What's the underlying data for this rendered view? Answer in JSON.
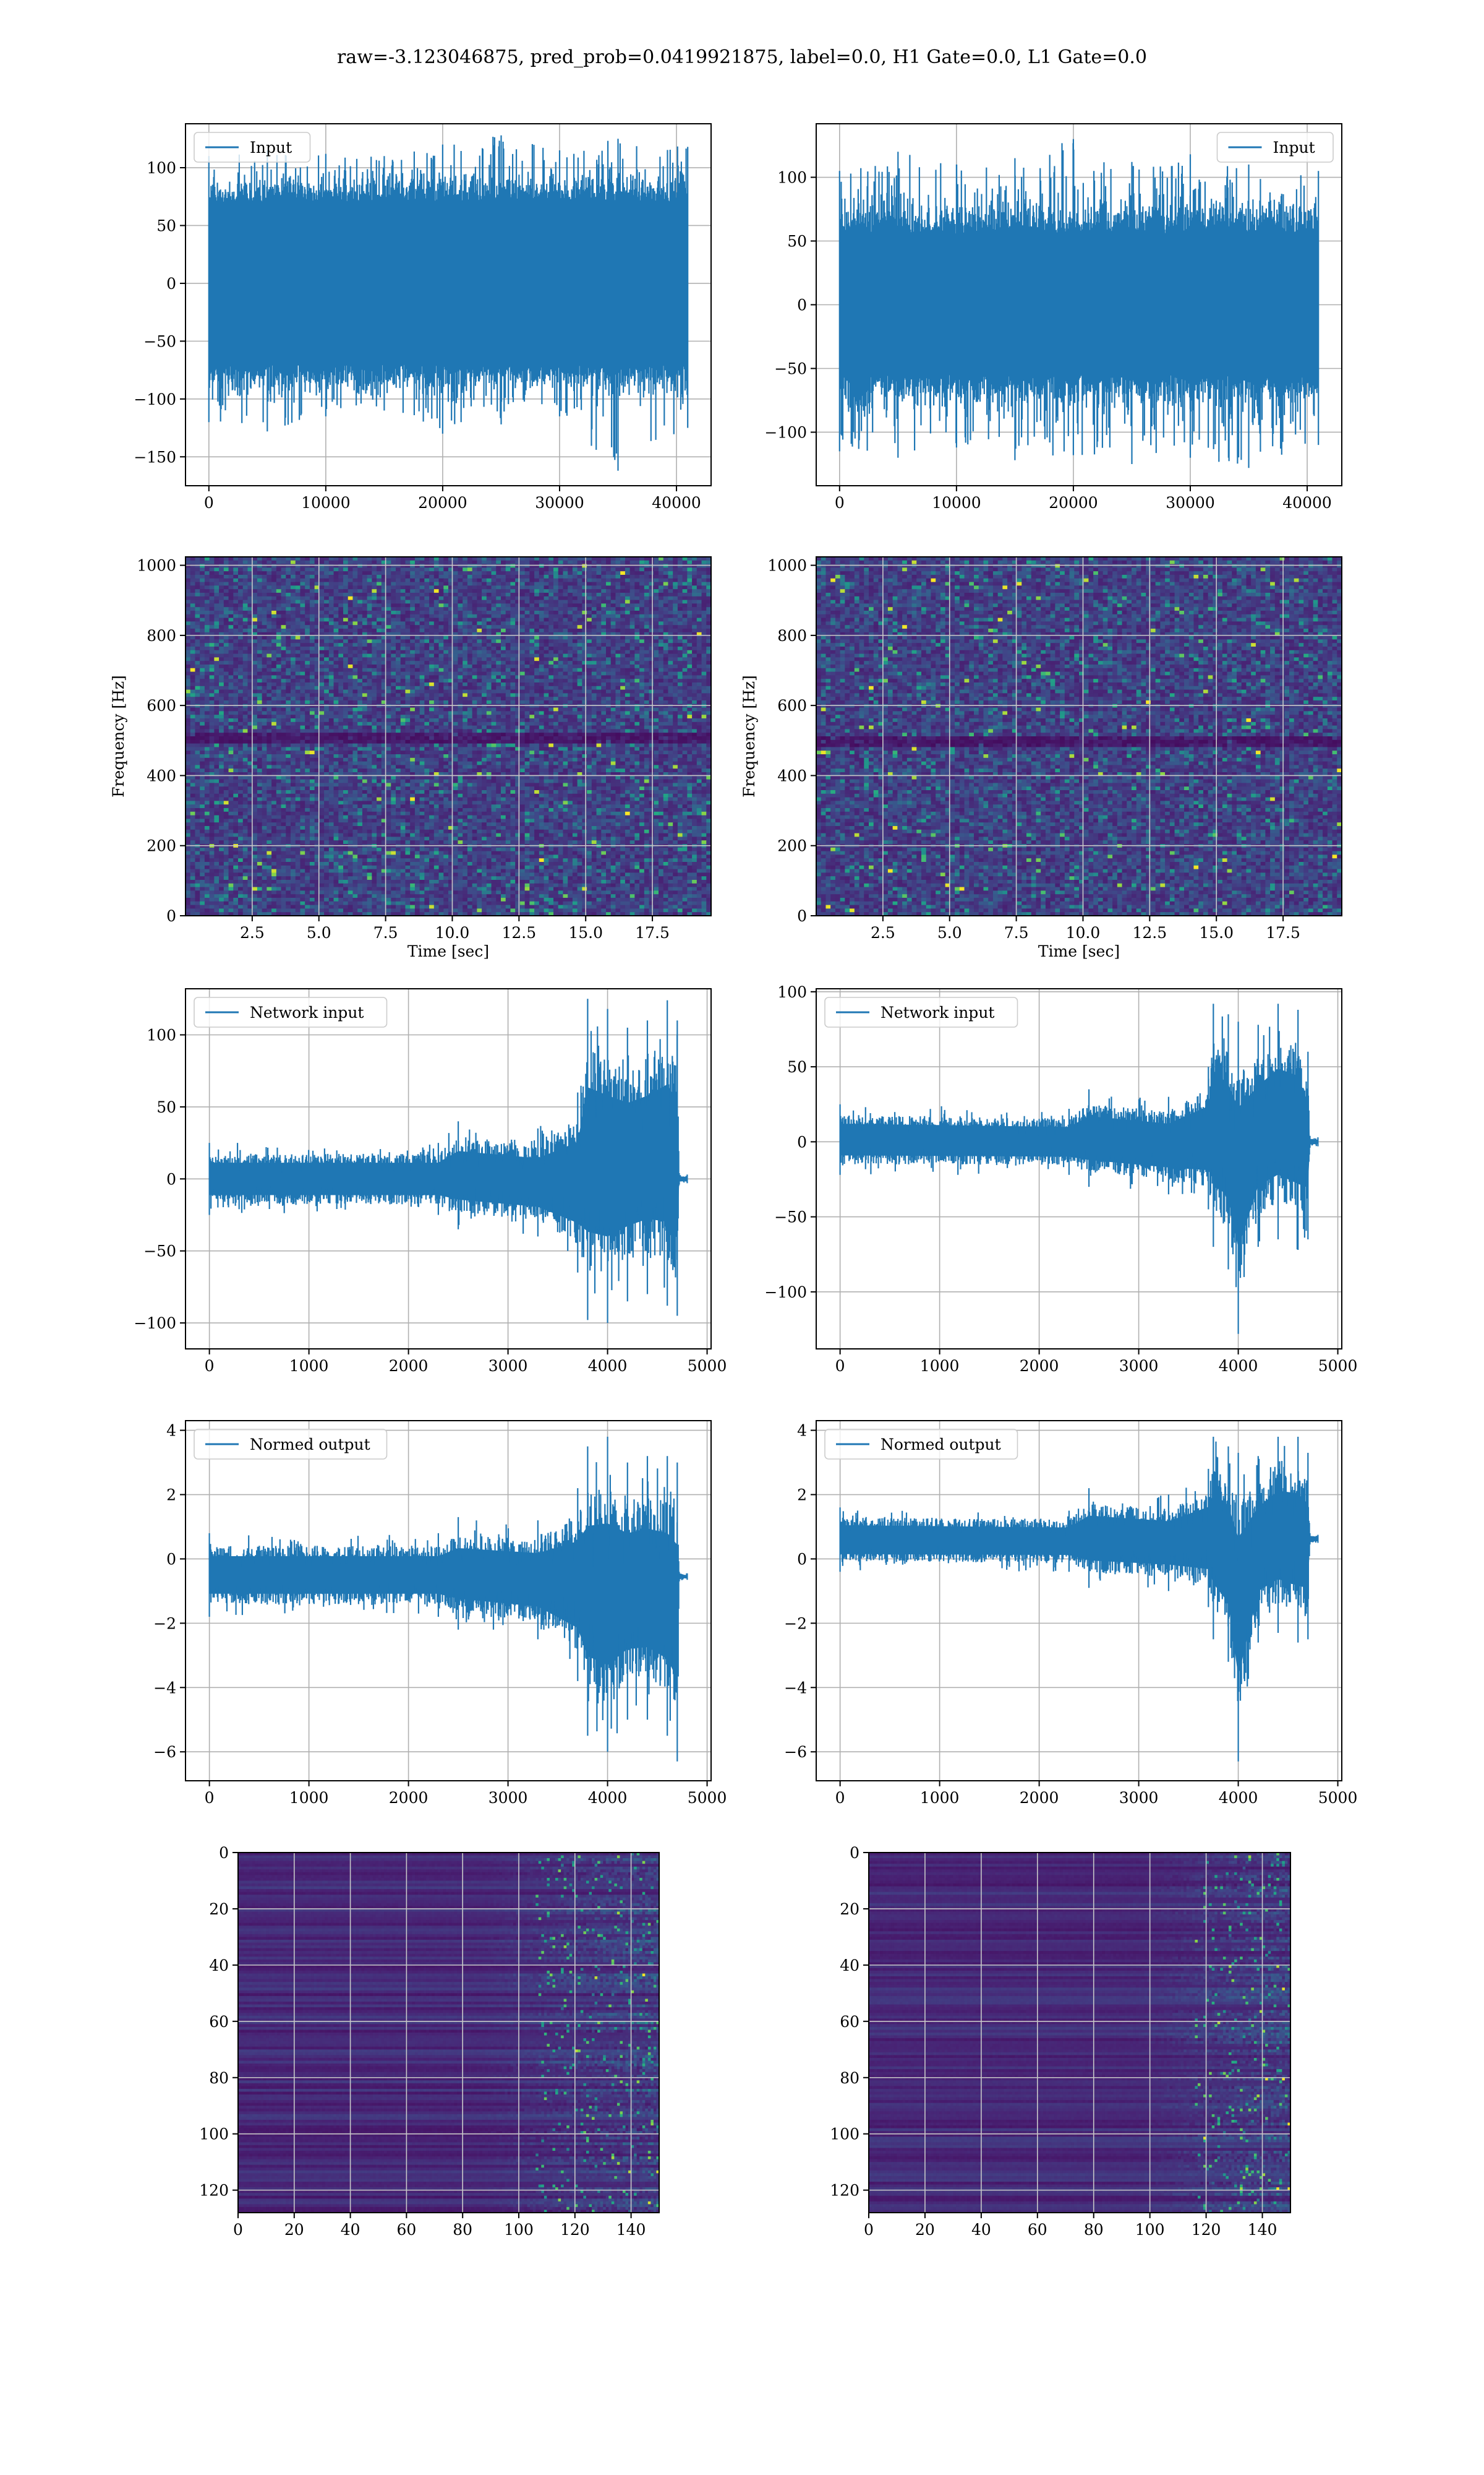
{
  "figure": {
    "title": "raw=-3.123046875, pred_prob=0.0419921875, label=0.0, H1 Gate=0.0, L1 Gate=0.0"
  },
  "colors": {
    "line": "#1f77b4",
    "grid": "#b0b0b0",
    "axes_edge": "#000000",
    "viridis_low": "#440154",
    "viridis_mid": "#21918c",
    "viridis_high": "#fde725"
  },
  "chart_data": [
    {
      "id": "input-h1",
      "type": "line",
      "legend": "Input",
      "legend_loc": "upper-left",
      "xlim": [
        -2000,
        42960
      ],
      "ylim": [
        -175,
        138
      ],
      "xticks": [
        0,
        10000,
        20000,
        30000,
        40000
      ],
      "yticks": [
        -150,
        -100,
        -50,
        0,
        50,
        100
      ],
      "grid": true,
      "series": [
        {
          "name": "Input",
          "x_range": [
            0,
            40960
          ],
          "points": 40960,
          "envelope_points_x": [
            0,
            5000,
            10000,
            15000,
            20000,
            25000,
            30000,
            35000,
            40960
          ],
          "core_band": [
            -70,
            70
          ],
          "peaks_max": [
            110,
            115,
            112,
            110,
            120,
            128,
            115,
            125,
            118
          ],
          "peaks_min": [
            -120,
            -128,
            -115,
            -110,
            -130,
            -122,
            -115,
            -162,
            -125
          ]
        }
      ]
    },
    {
      "id": "input-l1",
      "type": "line",
      "legend": "Input",
      "legend_loc": "upper-right",
      "xlim": [
        -2000,
        42960
      ],
      "ylim": [
        -142,
        142
      ],
      "xticks": [
        0,
        10000,
        20000,
        30000,
        40000
      ],
      "yticks": [
        -100,
        -50,
        0,
        50,
        100
      ],
      "grid": true,
      "series": [
        {
          "name": "Input",
          "x_range": [
            0,
            40960
          ],
          "points": 40960,
          "envelope_points_x": [
            0,
            5000,
            10000,
            15000,
            20000,
            25000,
            30000,
            35000,
            40960
          ],
          "core_band": [
            -55,
            55
          ],
          "peaks_max": [
            105,
            120,
            110,
            115,
            130,
            112,
            118,
            110,
            105
          ],
          "peaks_min": [
            -115,
            -120,
            -112,
            -122,
            -118,
            -125,
            -120,
            -128,
            -110
          ]
        }
      ]
    },
    {
      "id": "spectrogram-h1",
      "type": "heatmap",
      "xlabel": "Time [sec]",
      "ylabel": "Frequency [Hz]",
      "xlim": [
        0,
        19.7
      ],
      "ylim": [
        0,
        1024
      ],
      "xticks": [
        2.5,
        5.0,
        7.5,
        10.0,
        12.5,
        15.0,
        17.5
      ],
      "yticks": [
        0,
        200,
        400,
        600,
        800,
        1000
      ],
      "colormap": "viridis",
      "grid": true,
      "dark_band_hz": [
        500,
        510
      ]
    },
    {
      "id": "spectrogram-l1",
      "type": "heatmap",
      "xlabel": "Time [sec]",
      "ylabel": "Frequency [Hz]",
      "xlim": [
        0,
        19.7
      ],
      "ylim": [
        0,
        1024
      ],
      "xticks": [
        2.5,
        5.0,
        7.5,
        10.0,
        12.5,
        15.0,
        17.5
      ],
      "yticks": [
        0,
        200,
        400,
        600,
        800,
        1000
      ],
      "colormap": "viridis",
      "grid": true,
      "dark_band_hz": [
        495,
        505
      ]
    },
    {
      "id": "network-input-h1",
      "type": "line",
      "legend": "Network input",
      "legend_loc": "upper-left",
      "xlim": [
        -240,
        5040
      ],
      "ylim": [
        -118,
        132
      ],
      "xticks": [
        0,
        1000,
        2000,
        3000,
        4000,
        5000
      ],
      "yticks": [
        -100,
        -50,
        0,
        50,
        100
      ],
      "grid": true,
      "series": [
        {
          "name": "Network input",
          "x_range": [
            0,
            4800
          ],
          "envelope_points_x": [
            0,
            2300,
            2500,
            3300,
            3700,
            3800,
            4000,
            4200,
            4400,
            4600,
            4700,
            4720,
            4800
          ],
          "envelope_max": [
            25,
            25,
            40,
            35,
            60,
            125,
            118,
            105,
            110,
            124,
            110,
            4,
            3
          ],
          "envelope_min": [
            -25,
            -25,
            -35,
            -40,
            -65,
            -98,
            -100,
            -85,
            -80,
            -88,
            -95,
            -4,
            -3
          ]
        }
      ]
    },
    {
      "id": "network-input-l1",
      "type": "line",
      "legend": "Network input",
      "legend_loc": "upper-left",
      "xlim": [
        -240,
        5040
      ],
      "ylim": [
        -138,
        102
      ],
      "xticks": [
        0,
        1000,
        2000,
        3000,
        4000,
        5000
      ],
      "yticks": [
        -100,
        -50,
        0,
        50,
        100
      ],
      "grid": true,
      "series": [
        {
          "name": "Network input",
          "x_range": [
            0,
            4800
          ],
          "envelope_points_x": [
            0,
            2300,
            2500,
            3300,
            3700,
            3750,
            3900,
            4000,
            4200,
            4400,
            4600,
            4700,
            4720,
            4800
          ],
          "envelope_max": [
            25,
            22,
            35,
            30,
            50,
            92,
            85,
            80,
            78,
            92,
            88,
            60,
            4,
            3
          ],
          "envelope_min": [
            -22,
            -22,
            -30,
            -35,
            -45,
            -70,
            -85,
            -128,
            -70,
            -65,
            -72,
            -65,
            -4,
            -3
          ]
        }
      ]
    },
    {
      "id": "normed-output-h1",
      "type": "line",
      "legend": "Normed output",
      "legend_loc": "upper-left",
      "xlim": [
        -240,
        5040
      ],
      "ylim": [
        -6.9,
        4.3
      ],
      "xticks": [
        0,
        1000,
        2000,
        3000,
        4000,
        5000
      ],
      "yticks": [
        -6,
        -4,
        -2,
        0,
        2,
        4
      ],
      "grid": true,
      "series": [
        {
          "name": "Normed output",
          "x_range": [
            0,
            4800
          ],
          "offset": -0.5,
          "envelope_points_x": [
            0,
            2300,
            2500,
            3300,
            3700,
            3800,
            4000,
            4200,
            4400,
            4600,
            4700,
            4720,
            4800
          ],
          "envelope_max": [
            0.8,
            0.8,
            1.3,
            1.2,
            2.2,
            3.5,
            3.8,
            3.0,
            3.2,
            3.2,
            3.0,
            -0.4,
            -0.45
          ],
          "envelope_min": [
            -1.8,
            -1.8,
            -2.2,
            -2.5,
            -3.8,
            -5.5,
            -6.0,
            -5.0,
            -5.0,
            -5.5,
            -6.3,
            -0.7,
            -0.65
          ]
        }
      ]
    },
    {
      "id": "normed-output-l1",
      "type": "line",
      "legend": "Normed output",
      "legend_loc": "upper-left",
      "xlim": [
        -240,
        5040
      ],
      "ylim": [
        -6.9,
        4.3
      ],
      "xticks": [
        0,
        1000,
        2000,
        3000,
        4000,
        5000
      ],
      "yticks": [
        -6,
        -4,
        -2,
        0,
        2,
        4
      ],
      "grid": true,
      "series": [
        {
          "name": "Normed output",
          "x_range": [
            0,
            4800
          ],
          "offset": 0.6,
          "envelope_points_x": [
            0,
            2300,
            2500,
            3300,
            3700,
            3750,
            3900,
            4000,
            4200,
            4400,
            4600,
            4700,
            4720,
            4800
          ],
          "envelope_max": [
            1.6,
            1.5,
            2.2,
            2.0,
            2.8,
            3.8,
            3.5,
            3.3,
            3.2,
            3.8,
            3.8,
            3.3,
            0.8,
            0.75
          ],
          "envelope_min": [
            -0.4,
            -0.4,
            -0.9,
            -1.0,
            -1.5,
            -2.5,
            -3.2,
            -6.3,
            -2.6,
            -2.3,
            -2.6,
            -2.5,
            0.45,
            0.5
          ]
        }
      ]
    },
    {
      "id": "feature-map-h1",
      "type": "heatmap",
      "xlim": [
        0,
        150
      ],
      "ylim": [
        128,
        0
      ],
      "xticks": [
        0,
        20,
        40,
        60,
        80,
        100,
        120,
        140
      ],
      "yticks": [
        0,
        20,
        40,
        60,
        80,
        100,
        120
      ],
      "colormap": "viridis",
      "grid": true,
      "activity_onset_col": 105
    },
    {
      "id": "feature-map-l1",
      "type": "heatmap",
      "xlim": [
        0,
        150
      ],
      "ylim": [
        128,
        0
      ],
      "xticks": [
        0,
        20,
        40,
        60,
        80,
        100,
        120,
        140
      ],
      "yticks": [
        0,
        20,
        40,
        60,
        80,
        100,
        120
      ],
      "colormap": "viridis",
      "grid": true,
      "activity_onset_col": 115
    }
  ]
}
